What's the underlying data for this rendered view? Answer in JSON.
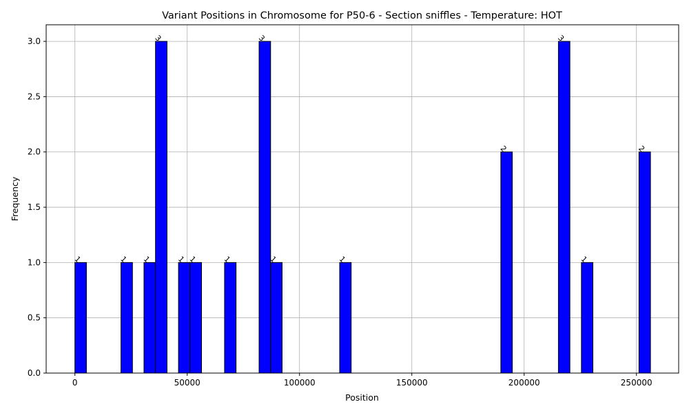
{
  "chart_data": {
    "type": "bar",
    "title": "Variant Positions in Chromosome for P50-6 - Section sniffles - Temperature: HOT",
    "xlabel": "Position",
    "ylabel": "Frequency",
    "xlim": [
      -12800,
      268800
    ],
    "ylim": [
      0,
      3.15
    ],
    "x_ticks": [
      0,
      50000,
      100000,
      150000,
      200000,
      250000
    ],
    "x_tick_labels": [
      "0",
      "50000",
      "100000",
      "150000",
      "200000",
      "250000"
    ],
    "y_ticks": [
      0,
      0.5,
      1,
      1.5,
      2,
      2.5,
      3
    ],
    "y_tick_labels": [
      "0.0",
      "0.5",
      "1.0",
      "1.5",
      "2.0",
      "2.5",
      "3.0"
    ],
    "bin_width": 5125,
    "grid": true,
    "bar_color": "#0000ff",
    "edge_color": "#000000",
    "bars": [
      {
        "x_start": 0,
        "x_end": 5125,
        "value": 1
      },
      {
        "x_start": 20500,
        "x_end": 25625,
        "value": 1
      },
      {
        "x_start": 30750,
        "x_end": 35875,
        "value": 1
      },
      {
        "x_start": 35875,
        "x_end": 41000,
        "value": 3
      },
      {
        "x_start": 46125,
        "x_end": 51250,
        "value": 1
      },
      {
        "x_start": 51250,
        "x_end": 56375,
        "value": 1
      },
      {
        "x_start": 66625,
        "x_end": 71750,
        "value": 1
      },
      {
        "x_start": 82000,
        "x_end": 87125,
        "value": 3
      },
      {
        "x_start": 87125,
        "x_end": 92250,
        "value": 1
      },
      {
        "x_start": 117875,
        "x_end": 123000,
        "value": 1
      },
      {
        "x_start": 189625,
        "x_end": 194750,
        "value": 2
      },
      {
        "x_start": 215250,
        "x_end": 220375,
        "value": 3
      },
      {
        "x_start": 225500,
        "x_end": 230625,
        "value": 1
      },
      {
        "x_start": 251125,
        "x_end": 256250,
        "value": 2
      }
    ],
    "bar_labels": [
      "1",
      "1",
      "1",
      "3",
      "1",
      "1",
      "1",
      "3",
      "1",
      "1",
      "2",
      "3",
      "1",
      "2"
    ]
  }
}
